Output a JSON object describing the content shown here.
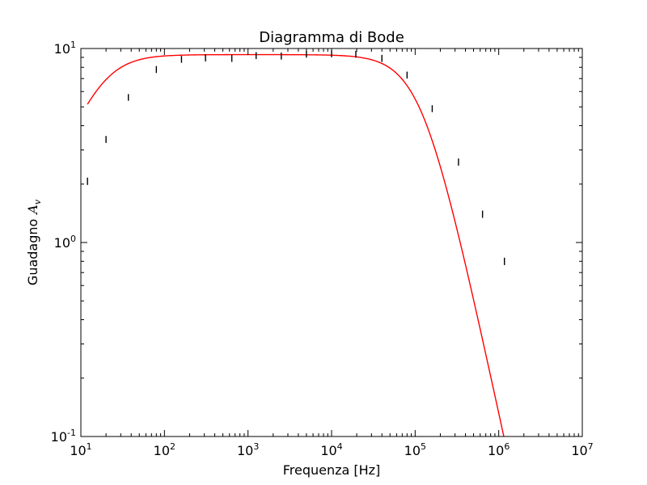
{
  "chart_data": {
    "type": "line",
    "title": "Diagramma di Bode",
    "xlabel": "Frequenza [Hz]",
    "ylabel_text": "Guadagno",
    "ylabel_math_base": "A",
    "ylabel_math_sub": "v",
    "xscale": "log",
    "yscale": "log",
    "xlim": [
      10,
      10000000
    ],
    "ylim": [
      0.1,
      10
    ],
    "grid": false,
    "legend": "none",
    "x_ticks": [
      {
        "value": 10,
        "base": "10",
        "exp": "1"
      },
      {
        "value": 100,
        "base": "10",
        "exp": "2"
      },
      {
        "value": 1000,
        "base": "10",
        "exp": "3"
      },
      {
        "value": 10000,
        "base": "10",
        "exp": "4"
      },
      {
        "value": 100000,
        "base": "10",
        "exp": "5"
      },
      {
        "value": 1000000,
        "base": "10",
        "exp": "6"
      },
      {
        "value": 10000000,
        "base": "10",
        "exp": "7"
      }
    ],
    "y_ticks": [
      {
        "value": 0.1,
        "base": "10",
        "exp": "-1"
      },
      {
        "value": 1,
        "base": "10",
        "exp": "0"
      },
      {
        "value": 10,
        "base": "10",
        "exp": "1"
      }
    ],
    "series": [
      {
        "kind": "errorbar",
        "color": "#000000",
        "points": [
          {
            "x": 12,
            "y": 2.07,
            "err": 0.09
          },
          {
            "x": 20,
            "y": 3.4,
            "err": 0.14
          },
          {
            "x": 37,
            "y": 5.6,
            "err": 0.22
          },
          {
            "x": 80,
            "y": 7.8,
            "err": 0.32
          },
          {
            "x": 160,
            "y": 8.8,
            "err": 0.36
          },
          {
            "x": 310,
            "y": 8.95,
            "err": 0.37
          },
          {
            "x": 640,
            "y": 8.9,
            "err": 0.37
          },
          {
            "x": 1250,
            "y": 9.2,
            "err": 0.38
          },
          {
            "x": 2500,
            "y": 9.15,
            "err": 0.38
          },
          {
            "x": 5000,
            "y": 9.35,
            "err": 0.38
          },
          {
            "x": 10000,
            "y": 9.4,
            "err": 0.39
          },
          {
            "x": 19500,
            "y": 9.35,
            "err": 0.38
          },
          {
            "x": 40000,
            "y": 8.9,
            "err": 0.37
          },
          {
            "x": 80000,
            "y": 7.3,
            "err": 0.3
          },
          {
            "x": 160000,
            "y": 4.9,
            "err": 0.2
          },
          {
            "x": 330000,
            "y": 2.6,
            "err": 0.11
          },
          {
            "x": 640000,
            "y": 1.4,
            "err": 0.06
          },
          {
            "x": 1170000,
            "y": 0.8,
            "err": 0.035
          }
        ]
      },
      {
        "kind": "fit",
        "color": "#ff0000",
        "model": {
          "gain": 9.3,
          "f_low": 18,
          "f_high": 120000
        }
      }
    ]
  }
}
